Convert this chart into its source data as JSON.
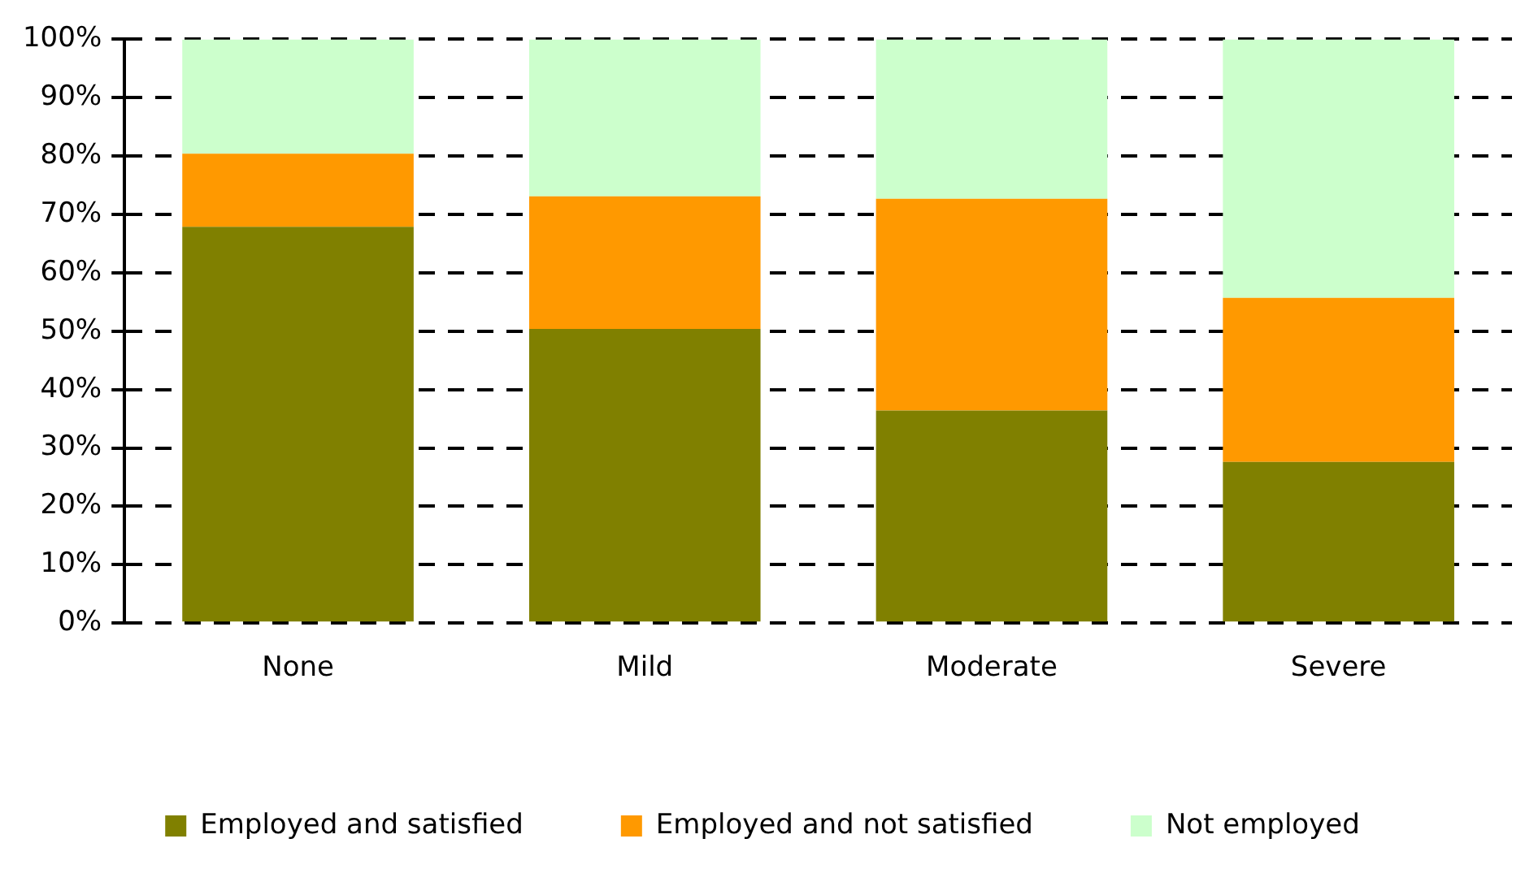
{
  "chart_data": {
    "type": "bar",
    "stacked": true,
    "categories": [
      "None",
      "Mild",
      "Moderate",
      "Severe"
    ],
    "series": [
      {
        "name": "Employed and satisfied",
        "color": "#808000",
        "values": [
          67.9,
          50.4,
          36.4,
          27.6
        ]
      },
      {
        "name": "Employed and not satisfied",
        "color": "#ff9900",
        "values": [
          12.5,
          22.7,
          36.3,
          28.1
        ]
      },
      {
        "name": "Not employed",
        "color": "#ccffcc",
        "values": [
          19.6,
          26.9,
          27.3,
          44.3
        ]
      }
    ],
    "ylim": [
      0,
      100
    ],
    "yticks": [
      {
        "value": 0,
        "label": "0%"
      },
      {
        "value": 10,
        "label": "10%"
      },
      {
        "value": 20,
        "label": "20%"
      },
      {
        "value": 30,
        "label": "30%"
      },
      {
        "value": 40,
        "label": "40%"
      },
      {
        "value": 50,
        "label": "50%"
      },
      {
        "value": 60,
        "label": "60%"
      },
      {
        "value": 70,
        "label": "70%"
      },
      {
        "value": 80,
        "label": "80%"
      },
      {
        "value": 90,
        "label": "90%"
      },
      {
        "value": 100,
        "label": "100%"
      }
    ],
    "grid": "y",
    "legend": "bottom",
    "line_style": "dashed"
  }
}
